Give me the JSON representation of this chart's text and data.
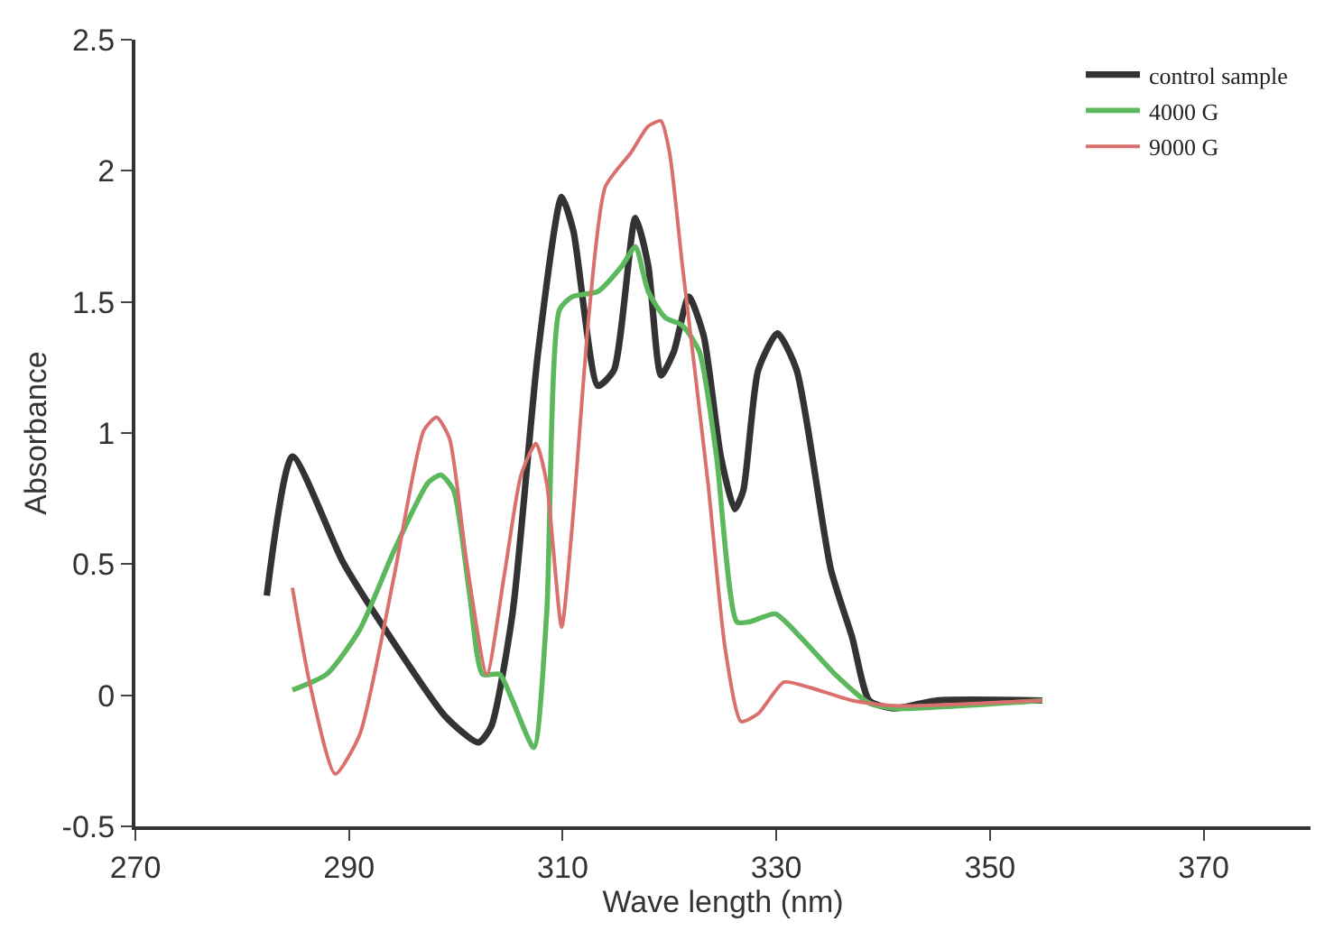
{
  "chart_data": {
    "type": "line",
    "xlabel": "Wave length (nm)",
    "ylabel": "Absorbance",
    "xlim": [
      270,
      380
    ],
    "xticks": [
      270,
      290,
      310,
      330,
      350,
      370
    ],
    "ylim": [
      -0.5,
      2.5
    ],
    "yticks": [
      -0.5,
      0,
      0.5,
      1,
      1.5,
      2,
      2.5
    ],
    "legend": "top right",
    "marker": "none",
    "line_style": "solid",
    "series": [
      {
        "name": "control sample",
        "color": "#333333",
        "x": [
          282.3,
          284.7,
          289.4,
          293.4,
          299,
          302.1,
          303.3,
          305.3,
          307.7,
          309.9,
          311,
          313.3,
          314.8,
          316.8,
          318,
          319.2,
          320.4,
          321.8,
          323.2,
          324.8,
          326.1,
          326.9,
          328.3,
          330.1,
          331.9,
          335.1,
          337.1,
          338.7,
          341,
          345,
          354.9
        ],
        "values": [
          0.38,
          0.91,
          0.51,
          0.25,
          -0.08,
          -0.18,
          -0.12,
          0.31,
          1.31,
          1.9,
          1.77,
          1.18,
          1.24,
          1.82,
          1.64,
          1.22,
          1.31,
          1.52,
          1.37,
          0.91,
          0.71,
          0.78,
          1.24,
          1.38,
          1.24,
          0.48,
          0.22,
          -0.02,
          -0.05,
          -0.02,
          -0.02
        ]
      },
      {
        "name": "4000 G",
        "color": "#5cb85c",
        "x": [
          284.7,
          287.9,
          291,
          294.2,
          297.4,
          298.6,
          299.8,
          301.3,
          302.5,
          304.1,
          305.3,
          307.3,
          308.5,
          309.7,
          310.9,
          313.3,
          315.6,
          316.8,
          318,
          319.6,
          321.2,
          322.8,
          324.4,
          326.3,
          327.5,
          329.9,
          332.3,
          335.5,
          338.7,
          341,
          354.9
        ],
        "values": [
          0.02,
          0.08,
          0.25,
          0.55,
          0.81,
          0.84,
          0.78,
          0.38,
          0.08,
          0.08,
          -0.02,
          -0.2,
          0.31,
          1.47,
          1.52,
          1.54,
          1.64,
          1.71,
          1.54,
          1.44,
          1.41,
          1.31,
          0.91,
          0.28,
          0.28,
          0.31,
          0.22,
          0.08,
          -0.03,
          -0.05,
          -0.02
        ]
      },
      {
        "name": "9000 G",
        "color": "#d9706e",
        "x": [
          284.7,
          286.3,
          288.7,
          291,
          294.2,
          297,
          298.2,
          299.4,
          301,
          302.9,
          304.5,
          306.1,
          307.5,
          308.5,
          309.9,
          310.9,
          312.5,
          314,
          316.4,
          318,
          319.2,
          320,
          321.2,
          323.6,
          325.2,
          326.7,
          328.3,
          330.7,
          333.1,
          337.1,
          341,
          354.9
        ],
        "values": [
          0.41,
          0.05,
          -0.3,
          -0.15,
          0.45,
          1.01,
          1.06,
          0.98,
          0.51,
          0.08,
          0.45,
          0.84,
          0.96,
          0.81,
          0.26,
          0.65,
          1.47,
          1.94,
          2.07,
          2.17,
          2.19,
          2.07,
          1.64,
          0.81,
          0.18,
          -0.1,
          -0.07,
          0.05,
          0.03,
          -0.02,
          -0.04,
          -0.02
        ]
      }
    ]
  }
}
